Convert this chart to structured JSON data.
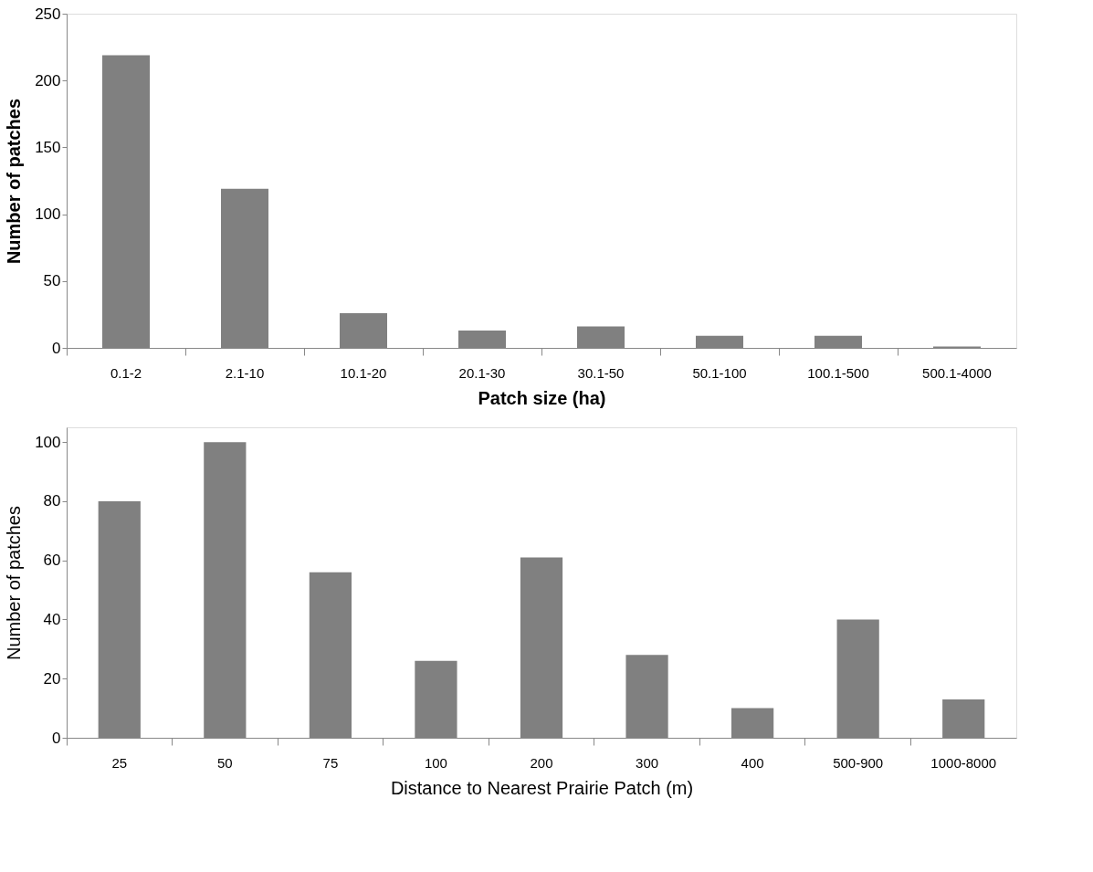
{
  "chart_data": [
    {
      "type": "bar",
      "xlabel": "Patch size (ha)",
      "ylabel": "Number of patches",
      "categories": [
        "0.1-2",
        "2.1-10",
        "10.1-20",
        "20.1-30",
        "30.1-50",
        "50.1-100",
        "100.1-500",
        "500.1-4000"
      ],
      "values": [
        219,
        119,
        26,
        13,
        16,
        9,
        9,
        1
      ],
      "color": "#808080",
      "ylim": [
        0,
        250
      ],
      "yticks": [
        0,
        50,
        100,
        150,
        200,
        250
      ],
      "grid": false
    },
    {
      "type": "bar",
      "xlabel": "Distance to Nearest Prairie Patch (m)",
      "ylabel": "Number of patches",
      "categories": [
        "25",
        "50",
        "75",
        "100",
        "200",
        "300",
        "400",
        "500-900",
        "1000-8000"
      ],
      "values": [
        80,
        100,
        56,
        26,
        61,
        28,
        10,
        40,
        13
      ],
      "color": "#808080",
      "ylim": [
        0,
        105
      ],
      "yticks": [
        0,
        20,
        40,
        60,
        80,
        100
      ],
      "grid": false
    }
  ]
}
